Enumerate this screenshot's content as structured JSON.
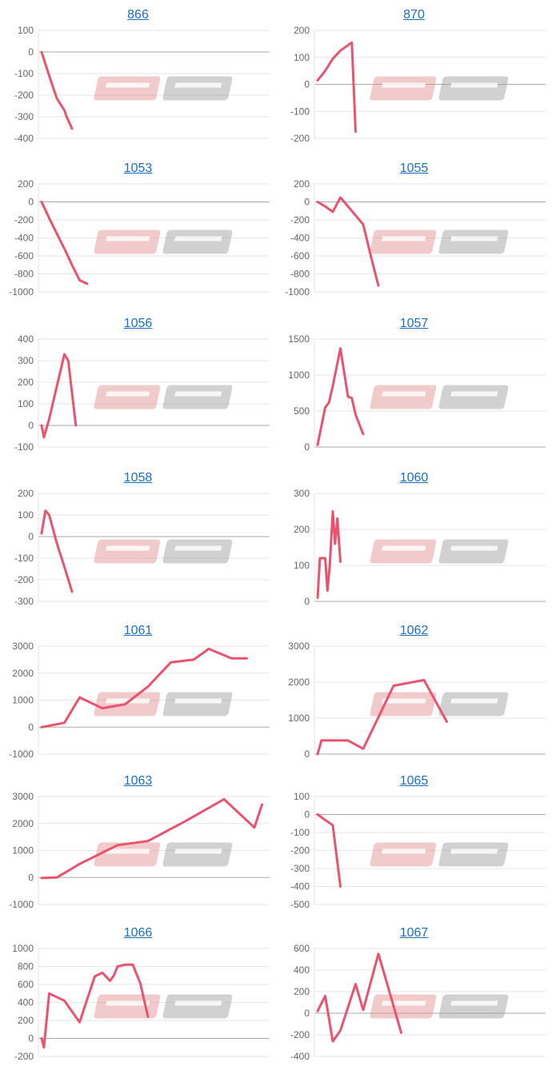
{
  "chart_data": [
    {
      "type": "line",
      "title": "866",
      "yticks": [
        "100",
        "0",
        "-100",
        "-200",
        "-300",
        "-400"
      ],
      "ylim": [
        -400,
        100
      ],
      "xlim": [
        0,
        30
      ],
      "series": [
        {
          "color": "#e8546f",
          "x": [
            0,
            1,
            2,
            3,
            3.3,
            4
          ],
          "y": [
            0,
            -110,
            -215,
            -270,
            -300,
            -355
          ]
        }
      ]
    },
    {
      "type": "line",
      "title": "870",
      "yticks": [
        "200",
        "100",
        "0",
        "-100",
        "-200"
      ],
      "ylim": [
        -200,
        200
      ],
      "xlim": [
        0,
        30
      ],
      "series": [
        {
          "color": "#e8546f",
          "x": [
            0,
            1,
            2,
            3,
            4.5,
            5
          ],
          "y": [
            15,
            50,
            95,
            125,
            155,
            -175
          ]
        }
      ]
    },
    {
      "type": "line",
      "title": "1053",
      "yticks": [
        "200",
        "0",
        "-200",
        "-400",
        "-600",
        "-800",
        "-1000"
      ],
      "ylim": [
        -1000,
        200
      ],
      "xlim": [
        0,
        30
      ],
      "series": [
        {
          "color": "#e8546f",
          "x": [
            0,
            1,
            2,
            3,
            4,
            5,
            6
          ],
          "y": [
            0,
            -180,
            -350,
            -520,
            -700,
            -870,
            -910
          ]
        }
      ]
    },
    {
      "type": "line",
      "title": "1055",
      "yticks": [
        "200",
        "0",
        "-200",
        "-400",
        "-600",
        "-800",
        "-1000"
      ],
      "ylim": [
        -1000,
        200
      ],
      "xlim": [
        0,
        30
      ],
      "series": [
        {
          "color": "#e8546f",
          "x": [
            0,
            1,
            2,
            3,
            4,
            5,
            6,
            7,
            8
          ],
          "y": [
            0,
            -50,
            -110,
            50,
            -50,
            -150,
            -250,
            -600,
            -930
          ]
        }
      ]
    },
    {
      "type": "line",
      "title": "1056",
      "yticks": [
        "400",
        "300",
        "200",
        "100",
        "0",
        "-100"
      ],
      "ylim": [
        -100,
        400
      ],
      "xlim": [
        0,
        30
      ],
      "series": [
        {
          "color": "#e8546f",
          "x": [
            0,
            0.3,
            1,
            3,
            3.5,
            4.5
          ],
          "y": [
            0,
            -55,
            30,
            330,
            300,
            0
          ]
        }
      ]
    },
    {
      "type": "line",
      "title": "1057",
      "yticks": [
        "1500",
        "1000",
        "500",
        "0"
      ],
      "ylim": [
        0,
        1500
      ],
      "xlim": [
        0,
        30
      ],
      "series": [
        {
          "color": "#e8546f",
          "x": [
            0,
            1,
            1.5,
            2,
            3,
            4,
            4.5,
            5,
            6
          ],
          "y": [
            30,
            550,
            620,
            850,
            1370,
            700,
            680,
            450,
            180
          ]
        }
      ]
    },
    {
      "type": "line",
      "title": "1058",
      "yticks": [
        "200",
        "100",
        "0",
        "-100",
        "-200",
        "-300"
      ],
      "ylim": [
        -300,
        200
      ],
      "xlim": [
        0,
        30
      ],
      "series": [
        {
          "color": "#e8546f",
          "x": [
            0,
            0.5,
            1,
            2,
            3,
            4
          ],
          "y": [
            15,
            120,
            100,
            -30,
            -140,
            -255
          ]
        }
      ]
    },
    {
      "type": "line",
      "title": "1060",
      "yticks": [
        "300",
        "200",
        "100",
        "0"
      ],
      "ylim": [
        0,
        300
      ],
      "xlim": [
        0,
        30
      ],
      "series": [
        {
          "color": "#e8546f",
          "x": [
            0,
            0.3,
            1,
            1.3,
            1.6,
            2,
            2.3,
            2.6,
            3
          ],
          "y": [
            10,
            120,
            120,
            30,
            100,
            250,
            160,
            230,
            110
          ]
        }
      ]
    },
    {
      "type": "line",
      "title": "1061",
      "yticks": [
        "3000",
        "2000",
        "1000",
        "0",
        "-1000"
      ],
      "ylim": [
        -1000,
        3000
      ],
      "xlim": [
        0,
        30
      ],
      "series": [
        {
          "color": "#e8546f",
          "x": [
            0,
            3,
            5,
            8,
            11,
            14,
            17,
            20,
            22,
            25,
            27
          ],
          "y": [
            0,
            160,
            1100,
            700,
            850,
            1500,
            2400,
            2500,
            2900,
            2550,
            2550
          ]
        }
      ]
    },
    {
      "type": "line",
      "title": "1062",
      "yticks": [
        "3000",
        "2000",
        "1000",
        "0"
      ],
      "ylim": [
        0,
        3000
      ],
      "xlim": [
        0,
        30
      ],
      "series": [
        {
          "color": "#e8546f",
          "x": [
            0,
            0.5,
            3,
            4,
            6,
            10,
            14,
            17
          ],
          "y": [
            0,
            380,
            380,
            380,
            150,
            1900,
            2060,
            900
          ]
        }
      ]
    },
    {
      "type": "line",
      "title": "1063",
      "yticks": [
        "3000",
        "2000",
        "1000",
        "0",
        "-1000"
      ],
      "ylim": [
        -1000,
        3000
      ],
      "xlim": [
        0,
        30
      ],
      "series": [
        {
          "color": "#e8546f",
          "x": [
            0,
            2,
            5,
            10,
            14,
            19,
            24,
            28,
            29
          ],
          "y": [
            -20,
            0,
            500,
            1200,
            1350,
            2100,
            2900,
            1850,
            2700
          ]
        }
      ]
    },
    {
      "type": "line",
      "title": "1065",
      "yticks": [
        "100",
        "0",
        "-100",
        "-200",
        "-300",
        "-400",
        "-500"
      ],
      "ylim": [
        -500,
        100
      ],
      "xlim": [
        0,
        30
      ],
      "series": [
        {
          "color": "#e8546f",
          "x": [
            0,
            1,
            2,
            3
          ],
          "y": [
            0,
            -30,
            -60,
            -400
          ]
        }
      ]
    },
    {
      "type": "line",
      "title": "1066",
      "yticks": [
        "1000",
        "800",
        "600",
        "400",
        "200",
        "0",
        "-200"
      ],
      "ylim": [
        -200,
        1000
      ],
      "xlim": [
        0,
        30
      ],
      "series": [
        {
          "color": "#e8546f",
          "x": [
            0,
            0.3,
            1,
            3,
            5,
            7,
            8,
            9,
            9.5,
            10,
            11,
            12,
            13,
            14
          ],
          "y": [
            0,
            -100,
            500,
            420,
            180,
            690,
            730,
            640,
            700,
            800,
            820,
            820,
            610,
            240
          ]
        }
      ]
    },
    {
      "type": "line",
      "title": "1067",
      "yticks": [
        "600",
        "400",
        "200",
        "0",
        "-200",
        "-400"
      ],
      "ylim": [
        -400,
        600
      ],
      "xlim": [
        0,
        30
      ],
      "series": [
        {
          "color": "#e8546f",
          "x": [
            0,
            1,
            2,
            3,
            5,
            6,
            8,
            9,
            11
          ],
          "y": [
            20,
            160,
            -260,
            -160,
            270,
            30,
            550,
            310,
            -180
          ]
        }
      ]
    }
  ]
}
